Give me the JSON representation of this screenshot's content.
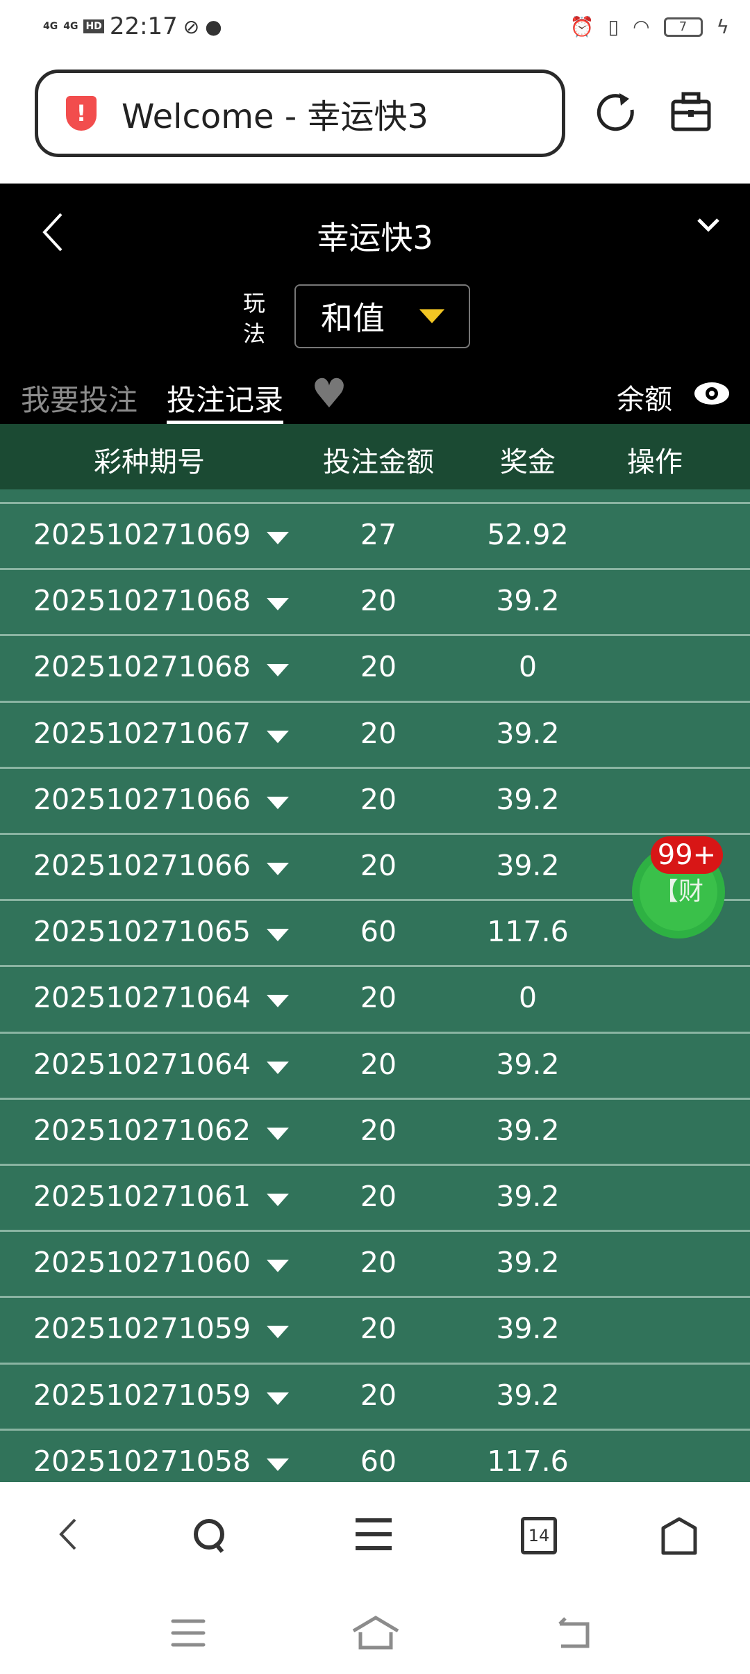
{
  "status": {
    "time": "22:17",
    "signal1": "4G",
    "signal2": "4G",
    "hd": "HD",
    "battery": "7"
  },
  "browser": {
    "url_title": "Welcome - 幸运快3"
  },
  "header": {
    "title": "幸运快3",
    "play_label": "玩法",
    "play_value": "和值",
    "tab_bet": "我要投注",
    "tab_records": "投注记录",
    "balance_label": "余额"
  },
  "table": {
    "columns": [
      "彩种期号",
      "投注金额",
      "奖金",
      "操作"
    ],
    "rows": [
      {
        "id": "202510271069",
        "amount": "27",
        "prize": "52.92"
      },
      {
        "id": "202510271068",
        "amount": "20",
        "prize": "39.2"
      },
      {
        "id": "202510271068",
        "amount": "20",
        "prize": "0"
      },
      {
        "id": "202510271067",
        "amount": "20",
        "prize": "39.2"
      },
      {
        "id": "202510271066",
        "amount": "20",
        "prize": "39.2"
      },
      {
        "id": "202510271066",
        "amount": "20",
        "prize": "39.2"
      },
      {
        "id": "202510271065",
        "amount": "60",
        "prize": "117.6"
      },
      {
        "id": "202510271064",
        "amount": "20",
        "prize": "0"
      },
      {
        "id": "202510271064",
        "amount": "20",
        "prize": "39.2"
      },
      {
        "id": "202510271062",
        "amount": "20",
        "prize": "39.2"
      },
      {
        "id": "202510271061",
        "amount": "20",
        "prize": "39.2"
      },
      {
        "id": "202510271060",
        "amount": "20",
        "prize": "39.2"
      },
      {
        "id": "202510271059",
        "amount": "20",
        "prize": "39.2"
      },
      {
        "id": "202510271059",
        "amount": "20",
        "prize": "39.2"
      },
      {
        "id": "202510271058",
        "amount": "60",
        "prize": "117.6"
      }
    ]
  },
  "fab": {
    "label": "【财",
    "badge": "99+"
  },
  "bottom_nav": {
    "tabs_count": "14"
  },
  "colors": {
    "header_bg": "#000000",
    "table_header": "#1b4a33",
    "row_bg": "#31735a",
    "accent_arrow": "#f2c624",
    "badge": "#d81616",
    "fab": "#3ac04a"
  }
}
